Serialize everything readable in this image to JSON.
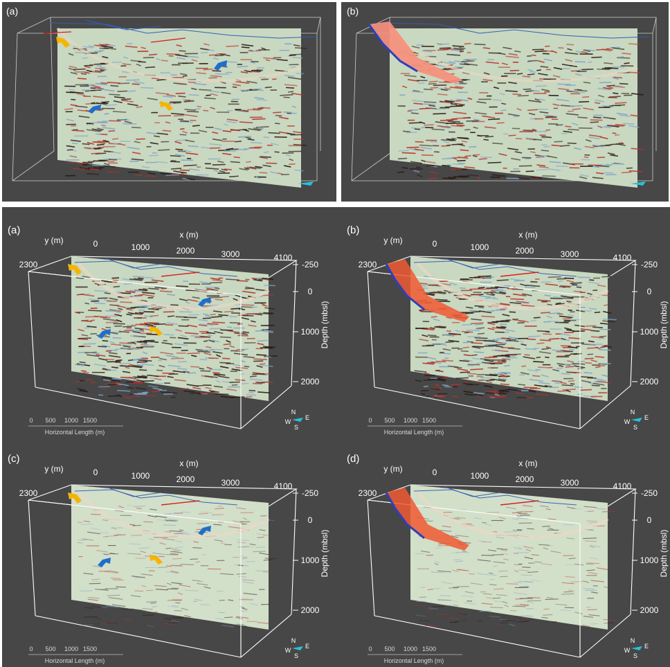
{
  "colors": {
    "panel_bg": "#474747",
    "section_fill": "#c9d8c0",
    "arrow_yellow": "#f5b400",
    "arrow_blue": "#1f6fc8",
    "fault_orange": "#f04a23",
    "fault_blue_edge": "#2c3fbf",
    "grid_white": "#ffffff"
  },
  "top_row": {
    "panels": [
      {
        "tag": "(a)",
        "has_fault": false,
        "arrows": [
          "yellow",
          "blue",
          "blue",
          "yellow"
        ]
      },
      {
        "tag": "(b)",
        "has_fault": true,
        "arrows": []
      }
    ]
  },
  "grid_panels": [
    {
      "tag": "(a)",
      "has_fault": false,
      "style": "dense"
    },
    {
      "tag": "(b)",
      "has_fault": true,
      "style": "dense"
    },
    {
      "tag": "(c)",
      "has_fault": false,
      "style": "smooth"
    },
    {
      "tag": "(d)",
      "has_fault": true,
      "style": "smooth"
    }
  ],
  "axes": {
    "y_label": "y (m)",
    "y_value": "2300",
    "x_label": "x (m)",
    "x_ticks": [
      "0",
      "1000",
      "2000",
      "3000"
    ],
    "x_max": "4100",
    "depth_ticks": [
      "-250",
      "0",
      "1000",
      "2000"
    ],
    "depth_label": "Depth (mbsl)",
    "scale_ticks": [
      "0",
      "500",
      "1000",
      "1500"
    ],
    "scale_label": "Horizontal Length (m)",
    "compass": {
      "n": "N",
      "s": "S",
      "e": "E",
      "w": "W"
    }
  }
}
